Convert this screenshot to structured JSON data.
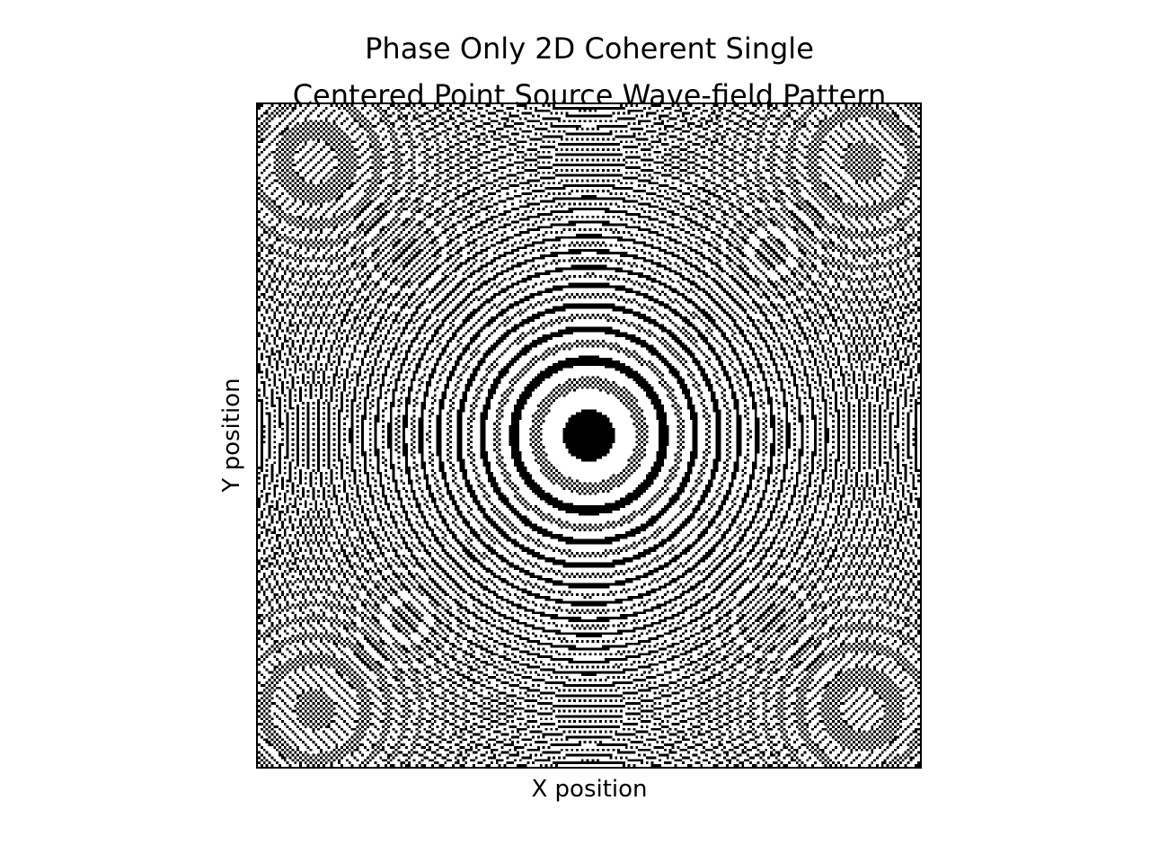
{
  "chart_data": {
    "type": "heatmap",
    "title_lines": [
      "Phase Only 2D Coherent Single",
      "Centered Point Source Wave-field Pattern"
    ],
    "xlabel": "X position",
    "ylabel": "Y position",
    "xticks": [],
    "yticks": [],
    "grid": false,
    "colormap": [
      "#000000",
      "#ffffff"
    ],
    "field": {
      "source": "single centered point source",
      "representation": "phase only, thresholded to black/white",
      "resolution": 256,
      "wavenumber": 1.9,
      "threshold": 0.55
    }
  }
}
